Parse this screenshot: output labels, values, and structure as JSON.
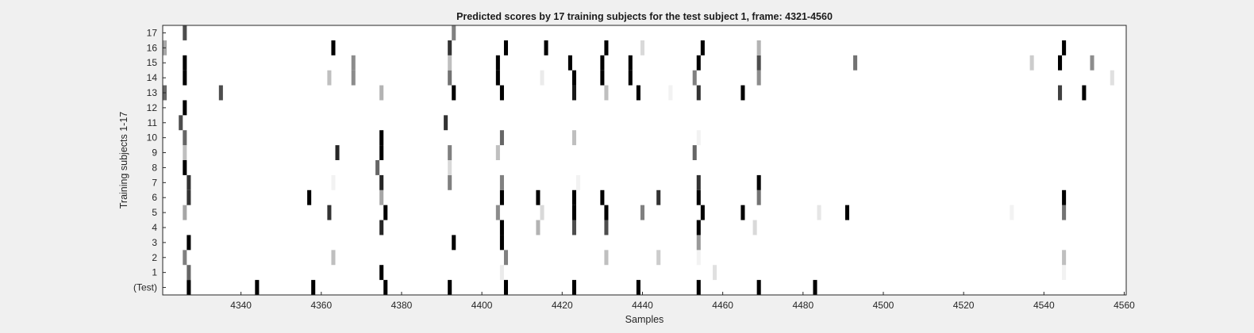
{
  "chart_data": {
    "type": "heatmap",
    "title": "Predicted scores by 17 training subjects for the test subject 1, frame: 4321-4560",
    "xlabel": "Samples",
    "ylabel": "Training subjects 1-17",
    "xlim": [
      4321,
      4560
    ],
    "x_ticks": [
      4340,
      4360,
      4380,
      4400,
      4420,
      4440,
      4460,
      4480,
      4500,
      4520,
      4540,
      4560
    ],
    "y_tick_labels": [
      "(Test)",
      "1",
      "2",
      "3",
      "4",
      "5",
      "6",
      "7",
      "8",
      "9",
      "10",
      "11",
      "12",
      "13",
      "14",
      "15",
      "16",
      "17"
    ],
    "colormap": "gray (white = 0, black = 1)",
    "grid": false,
    "rows": [
      {
        "label": "(Test)",
        "cells": [
          [
            4327,
            1.0
          ],
          [
            4344,
            1.0
          ],
          [
            4358,
            1.0
          ],
          [
            4376,
            1.0
          ],
          [
            4392,
            1.0
          ],
          [
            4406,
            1.0
          ],
          [
            4423,
            1.0
          ],
          [
            4439,
            1.0
          ],
          [
            4454,
            1.0
          ],
          [
            4469,
            1.0
          ],
          [
            4483,
            1.0
          ]
        ]
      },
      {
        "label": "1",
        "cells": [
          [
            4327,
            0.6
          ],
          [
            4375,
            1.0
          ],
          [
            4405,
            0.08
          ],
          [
            4458,
            0.12
          ],
          [
            4545,
            0.05
          ]
        ]
      },
      {
        "label": "2",
        "cells": [
          [
            4326,
            0.5
          ],
          [
            4363,
            0.25
          ],
          [
            4406,
            0.5
          ],
          [
            4431,
            0.25
          ],
          [
            4444,
            0.2
          ],
          [
            4454,
            0.05
          ],
          [
            4545,
            0.25
          ]
        ]
      },
      {
        "label": "3",
        "cells": [
          [
            4327,
            1.0
          ],
          [
            4393,
            1.0
          ],
          [
            4405,
            1.0
          ],
          [
            4454,
            0.4
          ]
        ]
      },
      {
        "label": "4",
        "cells": [
          [
            4375,
            0.85
          ],
          [
            4405,
            1.0
          ],
          [
            4414,
            0.3
          ],
          [
            4423,
            0.7
          ],
          [
            4431,
            0.7
          ],
          [
            4454,
            1.0
          ],
          [
            4468,
            0.15
          ]
        ]
      },
      {
        "label": "5",
        "cells": [
          [
            4326,
            0.35
          ],
          [
            4362,
            0.8
          ],
          [
            4376,
            1.0
          ],
          [
            4404,
            0.45
          ],
          [
            4415,
            0.15
          ],
          [
            4423,
            1.0
          ],
          [
            4431,
            1.0
          ],
          [
            4440,
            0.5
          ],
          [
            4455,
            1.0
          ],
          [
            4465,
            1.0
          ],
          [
            4484,
            0.1
          ],
          [
            4491,
            1.0
          ],
          [
            4532,
            0.05
          ],
          [
            4545,
            0.55
          ]
        ]
      },
      {
        "label": "6",
        "cells": [
          [
            4327,
            0.8
          ],
          [
            4357,
            1.0
          ],
          [
            4375,
            0.35
          ],
          [
            4405,
            1.0
          ],
          [
            4414,
            1.0
          ],
          [
            4423,
            1.0
          ],
          [
            4430,
            1.0
          ],
          [
            4444,
            0.8
          ],
          [
            4454,
            1.0
          ],
          [
            4469,
            0.55
          ],
          [
            4545,
            1.0
          ]
        ]
      },
      {
        "label": "7",
        "cells": [
          [
            4327,
            0.8
          ],
          [
            4363,
            0.05
          ],
          [
            4375,
            0.85
          ],
          [
            4392,
            0.5
          ],
          [
            4405,
            0.5
          ],
          [
            4424,
            0.05
          ],
          [
            4454,
            0.8
          ],
          [
            4469,
            1.0
          ]
        ]
      },
      {
        "label": "8",
        "cells": [
          [
            4326,
            1.0
          ],
          [
            4374,
            0.6
          ],
          [
            4392,
            0.15
          ]
        ]
      },
      {
        "label": "9",
        "cells": [
          [
            4326,
            0.25
          ],
          [
            4364,
            0.85
          ],
          [
            4375,
            1.0
          ],
          [
            4392,
            0.5
          ],
          [
            4404,
            0.25
          ],
          [
            4453,
            0.6
          ]
        ]
      },
      {
        "label": "10",
        "cells": [
          [
            4326,
            0.6
          ],
          [
            4375,
            1.0
          ],
          [
            4405,
            0.6
          ],
          [
            4423,
            0.25
          ],
          [
            4454,
            0.05
          ]
        ]
      },
      {
        "label": "11",
        "cells": [
          [
            4325,
            0.7
          ],
          [
            4391,
            0.8
          ]
        ]
      },
      {
        "label": "12",
        "cells": [
          [
            4326,
            1.0
          ]
        ]
      },
      {
        "label": "13",
        "cells": [
          [
            4321,
            0.6
          ],
          [
            4335,
            0.7
          ],
          [
            4375,
            0.3
          ],
          [
            4393,
            1.0
          ],
          [
            4405,
            1.0
          ],
          [
            4423,
            0.9
          ],
          [
            4431,
            0.25
          ],
          [
            4439,
            1.0
          ],
          [
            4447,
            0.05
          ],
          [
            4454,
            0.8
          ],
          [
            4465,
            1.0
          ],
          [
            4544,
            0.75
          ],
          [
            4550,
            1.0
          ]
        ]
      },
      {
        "label": "14",
        "cells": [
          [
            4326,
            1.0
          ],
          [
            4362,
            0.25
          ],
          [
            4368,
            0.45
          ],
          [
            4392,
            0.55
          ],
          [
            4404,
            1.0
          ],
          [
            4415,
            0.08
          ],
          [
            4423,
            1.0
          ],
          [
            4430,
            1.0
          ],
          [
            4437,
            1.0
          ],
          [
            4453,
            0.5
          ],
          [
            4469,
            0.45
          ],
          [
            4557,
            0.12
          ]
        ]
      },
      {
        "label": "15",
        "cells": [
          [
            4326,
            1.0
          ],
          [
            4368,
            0.45
          ],
          [
            4392,
            0.25
          ],
          [
            4404,
            1.0
          ],
          [
            4422,
            1.0
          ],
          [
            4430,
            1.0
          ],
          [
            4437,
            1.0
          ],
          [
            4454,
            1.0
          ],
          [
            4469,
            0.7
          ],
          [
            4493,
            0.55
          ],
          [
            4537,
            0.2
          ],
          [
            4544,
            1.0
          ],
          [
            4552,
            0.45
          ]
        ]
      },
      {
        "label": "16",
        "cells": [
          [
            4321,
            0.35
          ],
          [
            4363,
            1.0
          ],
          [
            4392,
            0.8
          ],
          [
            4406,
            1.0
          ],
          [
            4416,
            1.0
          ],
          [
            4431,
            1.0
          ],
          [
            4440,
            0.15
          ],
          [
            4455,
            1.0
          ],
          [
            4469,
            0.3
          ],
          [
            4545,
            1.0
          ]
        ]
      },
      {
        "label": "17",
        "cells": [
          [
            4326,
            0.7
          ],
          [
            4393,
            0.5
          ]
        ]
      }
    ]
  }
}
